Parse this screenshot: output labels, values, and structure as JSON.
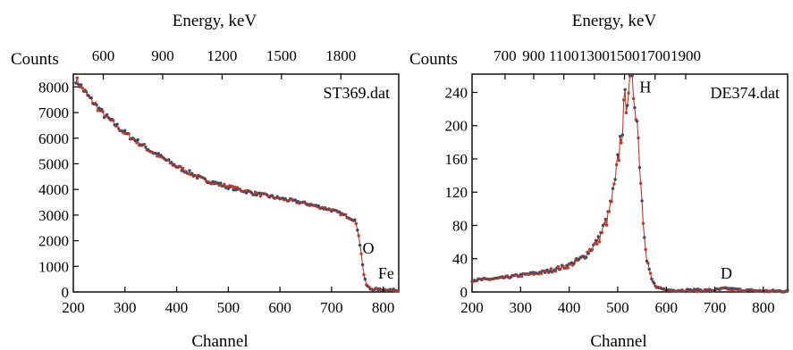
{
  "chart_data": [
    {
      "type": "scatter",
      "file_label": "ST369.dat",
      "xlabel": "Channel",
      "ylabel": "Counts",
      "top_xlabel": "Energy, keV",
      "xlim": [
        200,
        830
      ],
      "ylim": [
        0,
        8500
      ],
      "xticks": [
        200,
        300,
        400,
        500,
        600,
        700,
        800
      ],
      "yticks": [
        0,
        1000,
        2000,
        3000,
        4000,
        5000,
        6000,
        7000,
        8000
      ],
      "top_ticks": [
        {
          "label": "600",
          "channel": 258
        },
        {
          "label": "900",
          "channel": 373
        },
        {
          "label": "1200",
          "channel": 488
        },
        {
          "label": "1500",
          "channel": 603
        },
        {
          "label": "1800",
          "channel": 718
        }
      ],
      "annotations": [
        {
          "text": "O",
          "x": 760,
          "y": 1500
        },
        {
          "text": "Fe",
          "x": 790,
          "y": 520
        }
      ],
      "profile": [
        [
          205,
          8300
        ],
        [
          230,
          7600
        ],
        [
          260,
          6900
        ],
        [
          300,
          6200
        ],
        [
          350,
          5500
        ],
        [
          400,
          4900
        ],
        [
          450,
          4400
        ],
        [
          500,
          4100
        ],
        [
          550,
          3850
        ],
        [
          600,
          3650
        ],
        [
          650,
          3450
        ],
        [
          700,
          3200
        ],
        [
          730,
          2950
        ],
        [
          745,
          2800
        ],
        [
          752,
          2300
        ],
        [
          758,
          1400
        ],
        [
          763,
          600
        ],
        [
          768,
          250
        ],
        [
          775,
          120
        ],
        [
          790,
          100
        ],
        [
          810,
          90
        ],
        [
          828,
          60
        ]
      ]
    },
    {
      "type": "scatter",
      "file_label": "DE374.dat",
      "xlabel": "Channel",
      "ylabel": "Counts",
      "top_xlabel": "Energy, keV",
      "xlim": [
        200,
        850
      ],
      "ylim": [
        0,
        262
      ],
      "xticks": [
        200,
        300,
        400,
        500,
        600,
        700,
        800
      ],
      "yticks": [
        0,
        40,
        80,
        120,
        160,
        200,
        240
      ],
      "top_ticks": [
        {
          "label": "700",
          "channel": 268
        },
        {
          "label": "900",
          "channel": 327
        },
        {
          "label": "1100",
          "channel": 389
        },
        {
          "label": "1300",
          "channel": 452
        },
        {
          "label": "1500",
          "channel": 514
        },
        {
          "label": "1700",
          "channel": 577
        },
        {
          "label": "1900",
          "channel": 640
        }
      ],
      "annotations": [
        {
          "text": "H",
          "x": 545,
          "y": 240
        },
        {
          "text": "D",
          "x": 712,
          "y": 16
        }
      ],
      "profile": [
        [
          200,
          14
        ],
        [
          250,
          16
        ],
        [
          300,
          20
        ],
        [
          350,
          24
        ],
        [
          400,
          32
        ],
        [
          430,
          42
        ],
        [
          460,
          62
        ],
        [
          480,
          90
        ],
        [
          495,
          130
        ],
        [
          505,
          180
        ],
        [
          515,
          225
        ],
        [
          522,
          250
        ],
        [
          530,
          250
        ],
        [
          538,
          225
        ],
        [
          545,
          160
        ],
        [
          552,
          90
        ],
        [
          560,
          40
        ],
        [
          570,
          15
        ],
        [
          580,
          5
        ],
        [
          600,
          2
        ],
        [
          700,
          2
        ],
        [
          720,
          4
        ],
        [
          740,
          3
        ],
        [
          760,
          2
        ],
        [
          800,
          1
        ],
        [
          850,
          1
        ]
      ]
    }
  ]
}
